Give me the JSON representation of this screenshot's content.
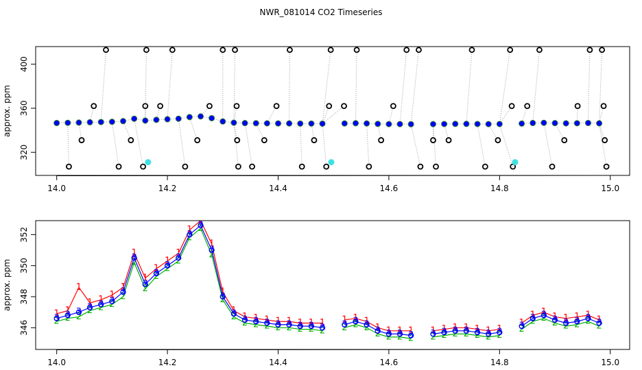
{
  "title": "NWR_081014  CO2 Timeseries",
  "chart_data": [
    {
      "type": "scatter",
      "ylabel": "approx. ppm",
      "xlim": [
        13.962,
        15.035
      ],
      "ylim": [
        299,
        416
      ],
      "xticks": [
        {
          "value": 14.0,
          "label": "14.0"
        },
        {
          "value": 14.2,
          "label": "14.2"
        },
        {
          "value": 14.4,
          "label": "14.4"
        },
        {
          "value": 14.6,
          "label": "14.6"
        },
        {
          "value": 14.8,
          "label": "14.8"
        },
        {
          "value": 15.0,
          "label": "15.0"
        }
      ],
      "yticks": [
        320,
        360,
        400
      ],
      "series": [
        {
          "color": "#0000ff",
          "point": "filled",
          "connect": true,
          "x": [
            14.0,
            14.02,
            14.04,
            14.06,
            14.08,
            14.1,
            14.12,
            14.14,
            14.16,
            14.18,
            14.2,
            14.22,
            14.24,
            14.26,
            14.28,
            14.3,
            14.32,
            14.34,
            14.36,
            14.38,
            14.4,
            14.42,
            14.44,
            14.46,
            14.48,
            14.5,
            14.52,
            14.54,
            14.56,
            14.58,
            14.6,
            14.62,
            14.64,
            14.66,
            14.68,
            14.7,
            14.72,
            14.74,
            14.76,
            14.78,
            14.8,
            14.82,
            14.84,
            14.86,
            14.88,
            14.9,
            14.92,
            14.94,
            14.96,
            14.98
          ],
          "values": [
            346.6,
            346.8,
            347.0,
            347.3,
            347.5,
            347.7,
            348.3,
            350.5,
            348.8,
            349.5,
            350.0,
            350.5,
            352.0,
            352.6,
            351.0,
            348.0,
            346.9,
            346.5,
            346.4,
            346.3,
            346.2,
            346.2,
            346.1,
            346.1,
            346.0,
            null,
            346.2,
            346.4,
            346.2,
            345.8,
            345.6,
            345.6,
            345.5,
            null,
            345.6,
            345.7,
            345.8,
            345.8,
            345.7,
            345.6,
            345.7,
            null,
            346.1,
            346.6,
            346.8,
            346.5,
            346.3,
            346.4,
            346.6,
            346.3
          ]
        },
        {
          "color": "#000000",
          "point": "open",
          "drop": true,
          "x": [
            14.022,
            14.045,
            14.067,
            14.089,
            14.112,
            14.134,
            14.156,
            14.16,
            14.162,
            14.187,
            14.209,
            14.232,
            14.254,
            14.276,
            14.3,
            14.322,
            14.325,
            14.326,
            14.328,
            14.353,
            14.375,
            14.397,
            14.421,
            14.443,
            14.465,
            14.487,
            14.492,
            14.495,
            14.519,
            14.542,
            14.564,
            14.586,
            14.608,
            14.632,
            14.654,
            14.657,
            14.68,
            14.685,
            14.708,
            14.75,
            14.774,
            14.797,
            14.819,
            14.822,
            14.824,
            14.85,
            14.872,
            14.895,
            14.917,
            14.941,
            14.963,
            14.985,
            14.988,
            14.99,
            14.993
          ],
          "values": [
            307,
            331,
            362,
            413,
            307,
            331,
            307,
            362,
            413,
            362,
            413,
            307,
            331,
            362,
            413,
            413,
            362,
            331,
            307,
            307,
            331,
            362,
            413,
            307,
            331,
            307,
            362,
            413,
            362,
            413,
            307,
            331,
            362,
            413,
            413,
            307,
            331,
            307,
            331,
            413,
            307,
            331,
            413,
            362,
            307,
            362,
            413,
            307,
            331,
            362,
            413,
            413,
            362,
            331,
            307
          ]
        },
        {
          "color": "#40e0e0",
          "point": "filled",
          "x": [
            14.165,
            14.496,
            14.828
          ],
          "values": [
            311,
            311,
            311
          ]
        }
      ]
    },
    {
      "type": "line",
      "ylabel": "approx. ppm",
      "xlim": [
        13.962,
        15.035
      ],
      "ylim": [
        344.6,
        352.9
      ],
      "xticks": [
        {
          "value": 14.0,
          "label": "14.0"
        },
        {
          "value": 14.2,
          "label": "14.2"
        },
        {
          "value": 14.4,
          "label": "14.4"
        },
        {
          "value": 14.6,
          "label": "14.6"
        },
        {
          "value": 14.8,
          "label": "14.8"
        },
        {
          "value": 15.0,
          "label": "15.0"
        }
      ],
      "yticks": [
        346,
        348,
        350,
        352
      ],
      "x": [
        14.0,
        14.02,
        14.04,
        14.06,
        14.08,
        14.1,
        14.12,
        14.14,
        14.16,
        14.18,
        14.2,
        14.22,
        14.24,
        14.26,
        14.28,
        14.3,
        14.32,
        14.34,
        14.36,
        14.38,
        14.4,
        14.42,
        14.44,
        14.46,
        14.48,
        14.5,
        14.52,
        14.54,
        14.56,
        14.58,
        14.6,
        14.62,
        14.64,
        14.66,
        14.68,
        14.7,
        14.72,
        14.74,
        14.76,
        14.78,
        14.8,
        14.82,
        14.84,
        14.86,
        14.88,
        14.9,
        14.92,
        14.94,
        14.96,
        14.98
      ],
      "series": [
        {
          "color": "#ff0000",
          "marker": "1",
          "values": [
            346.9,
            347.1,
            348.6,
            347.6,
            347.8,
            348.1,
            348.6,
            350.8,
            349.2,
            349.8,
            350.3,
            350.8,
            352.3,
            352.9,
            351.4,
            348.3,
            347.1,
            346.7,
            346.6,
            346.5,
            346.4,
            346.4,
            346.3,
            346.3,
            346.3,
            null,
            346.5,
            346.6,
            346.4,
            346.0,
            345.8,
            345.8,
            345.8,
            null,
            345.8,
            345.9,
            346.0,
            346.0,
            345.9,
            345.8,
            345.9,
            null,
            346.3,
            346.8,
            347.0,
            346.7,
            346.6,
            346.7,
            346.8,
            346.5
          ]
        },
        {
          "color": "#00b000",
          "marker": "2",
          "values": [
            346.4,
            346.6,
            346.7,
            347.1,
            347.3,
            347.5,
            348.0,
            350.2,
            348.5,
            349.3,
            349.8,
            350.3,
            351.8,
            352.4,
            350.7,
            347.8,
            346.7,
            346.3,
            346.2,
            346.1,
            346.0,
            346.0,
            345.9,
            345.9,
            345.8,
            null,
            346.0,
            346.2,
            346.0,
            345.6,
            345.4,
            345.4,
            345.3,
            null,
            345.4,
            345.5,
            345.6,
            345.6,
            345.5,
            345.4,
            345.5,
            null,
            345.9,
            346.4,
            346.6,
            346.3,
            346.1,
            346.2,
            346.4,
            346.1
          ]
        },
        {
          "color": "#0000ff",
          "marker": "3",
          "circle": true,
          "values": [
            346.6,
            346.8,
            347.0,
            347.3,
            347.5,
            347.7,
            348.3,
            350.5,
            348.8,
            349.5,
            350.0,
            350.5,
            352.0,
            352.6,
            351.0,
            348.0,
            346.9,
            346.5,
            346.4,
            346.3,
            346.2,
            346.2,
            346.1,
            346.1,
            346.0,
            null,
            346.2,
            346.4,
            346.2,
            345.8,
            345.6,
            345.6,
            345.5,
            null,
            345.6,
            345.7,
            345.8,
            345.8,
            345.7,
            345.6,
            345.7,
            null,
            346.1,
            346.6,
            346.8,
            346.5,
            346.3,
            346.4,
            346.6,
            346.3
          ]
        }
      ]
    }
  ]
}
